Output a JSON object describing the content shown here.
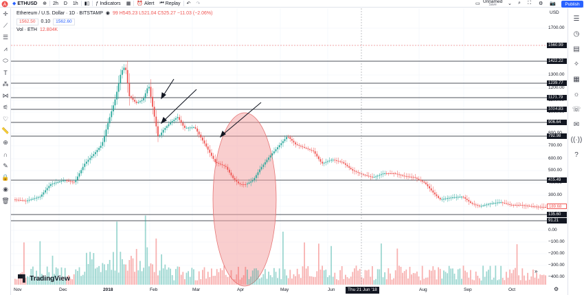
{
  "topbar": {
    "symbol": "ETHUSD",
    "intervals": [
      "2h",
      "D",
      "1h"
    ],
    "indicators_label": "Indicators",
    "alert_label": "Alert",
    "replay_label": "Replay",
    "layout_name": "Unnamed",
    "save_label": "Save",
    "publish_label": "Publish"
  },
  "legend": {
    "title": "Ethereum / U.S. Dollar · 1D · BITSTAMP",
    "ohlc": "99  H545.23  L521.04  C525.27  −11.03 (−2.06%)",
    "bid": "1562.50",
    "spread": "0.10",
    "ask": "1562.60",
    "vol_label": "Vol · ETH",
    "vol_value": "12.804K"
  },
  "watermark": "TradingView",
  "y_axis": {
    "currency": "USD",
    "ticks": [
      "1700.00",
      "1560.99",
      "1422.22",
      "1300.00",
      "1239.77",
      "1200.00",
      "1121.79",
      "1100.00",
      "1014.83",
      "1000.00",
      "906.64",
      "800.00",
      "792.98",
      "700.00",
      "600.00",
      "500.00",
      "415.49",
      "400.00",
      "300.00",
      "189.68",
      "135.60",
      "91.21",
      "0.00",
      "−100.00",
      "−200.00",
      "−300.00",
      "−400.00"
    ]
  },
  "x_axis": {
    "ticks": [
      "Nov",
      "Dec",
      "2018",
      "Feb",
      "Mar",
      "Apr",
      "May",
      "Jun",
      "Aug",
      "Sep",
      "Oct"
    ],
    "crosshair_label": "Thu 21 Jun '18"
  },
  "chart_data": {
    "type": "candlestick",
    "horizontal_levels": [
      1422.22,
      1239.77,
      1121.79,
      1014.83,
      906.64,
      792.98,
      415.49,
      135.6,
      91.21
    ],
    "current_price": 1560.99,
    "last_price": 189.68,
    "annotations": [
      "arrow",
      "arrow",
      "arrow",
      "ellipse-highlight"
    ],
    "colors": {
      "up": "#26a69a",
      "down": "#ef5350",
      "level": "#131722",
      "ellipse": "#f4a6a6"
    }
  }
}
